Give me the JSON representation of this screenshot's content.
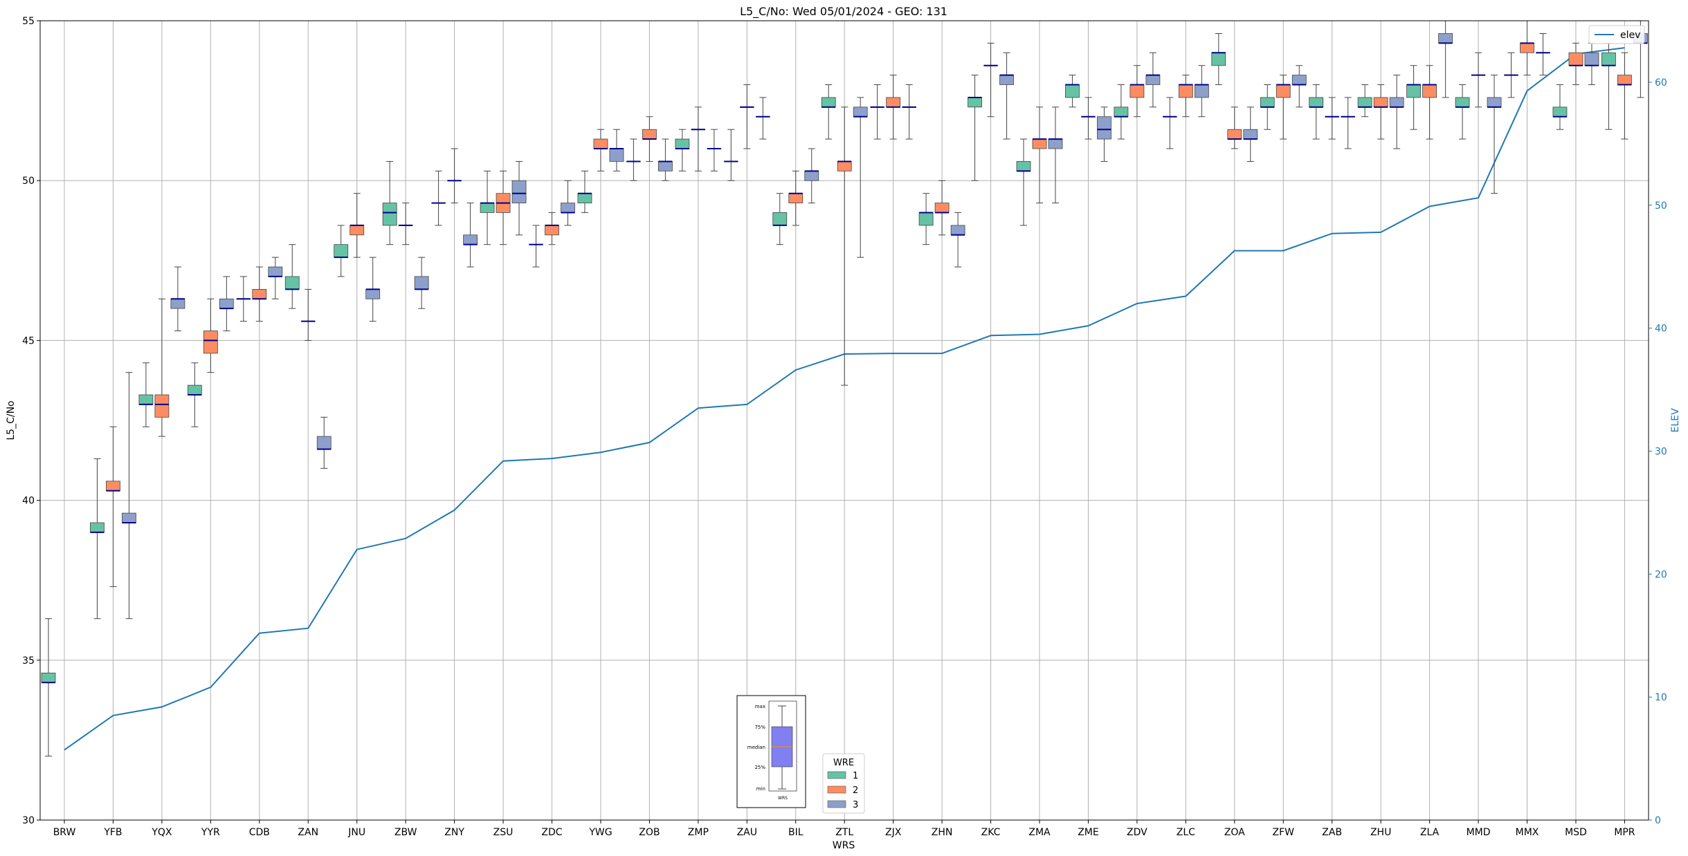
{
  "chart_data": {
    "type": "box",
    "title": "L5_C/No: Wed 05/01/2024 - GEO: 131",
    "xlabel": "WRS",
    "ylabel": "L5_C/No",
    "y2label": "ELEV",
    "ylim": [
      30,
      55
    ],
    "y2lim": [
      0,
      65
    ],
    "yticks": [
      30,
      35,
      40,
      45,
      50,
      55
    ],
    "y2ticks": [
      0,
      10,
      20,
      30,
      40,
      50,
      60
    ],
    "grid": true,
    "categories": [
      "BRW",
      "YFB",
      "YQX",
      "YYR",
      "CDB",
      "ZAN",
      "JNU",
      "ZBW",
      "ZNY",
      "ZSU",
      "ZDC",
      "YWG",
      "ZOB",
      "ZMP",
      "ZAU",
      "BIL",
      "ZTL",
      "ZJX",
      "ZHN",
      "ZKC",
      "ZMA",
      "ZME",
      "ZDV",
      "ZLC",
      "ZOA",
      "ZFW",
      "ZAB",
      "ZHU",
      "ZLA",
      "MMD",
      "MMX",
      "MSD",
      "MPR"
    ],
    "wre_legend": {
      "title": "WRE",
      "entries": [
        "1",
        "2",
        "3"
      ]
    },
    "colors": {
      "wre1": "#66c2a5",
      "wre2": "#fc8d62",
      "wre3": "#8da0cb",
      "median": "#00008b",
      "whisker": "#444444",
      "elev_line": "#1f77b4",
      "grid": "#b0b0b0"
    },
    "line_legend": "elev",
    "elev": [
      5.7,
      8.5,
      9.2,
      10.8,
      15.2,
      15.6,
      22.0,
      22.9,
      25.2,
      29.2,
      29.4,
      29.9,
      30.7,
      33.5,
      33.8,
      36.6,
      37.9,
      37.95,
      37.95,
      39.4,
      39.5,
      40.2,
      42.0,
      42.6,
      46.3,
      46.3,
      47.7,
      47.8,
      49.9,
      50.6,
      59.3,
      62.3,
      62.8
    ],
    "boxes": [
      [
        {
          "min": 32.0,
          "q1": 34.3,
          "med": 34.3,
          "q3": 34.6,
          "max": 36.3
        },
        null,
        null
      ],
      [
        {
          "min": 36.3,
          "q1": 39.0,
          "med": 39.0,
          "q3": 39.3,
          "max": 41.3
        },
        {
          "min": 37.3,
          "q1": 40.3,
          "med": 40.3,
          "q3": 40.6,
          "max": 42.3
        },
        {
          "min": 36.3,
          "q1": 39.3,
          "med": 39.3,
          "q3": 39.6,
          "max": 44.0
        }
      ],
      [
        {
          "min": 42.3,
          "q1": 43.0,
          "med": 43.0,
          "q3": 43.3,
          "max": 44.3
        },
        {
          "min": 42.0,
          "q1": 42.6,
          "med": 43.0,
          "q3": 43.3,
          "max": 46.3
        },
        {
          "min": 45.3,
          "q1": 46.0,
          "med": 46.3,
          "q3": 46.3,
          "max": 47.3
        }
      ],
      [
        {
          "min": 42.3,
          "q1": 43.3,
          "med": 43.3,
          "q3": 43.6,
          "max": 44.3
        },
        {
          "min": 44.0,
          "q1": 44.6,
          "med": 45.0,
          "q3": 45.3,
          "max": 46.3
        },
        {
          "min": 45.3,
          "q1": 46.0,
          "med": 46.0,
          "q3": 46.3,
          "max": 47.0
        }
      ],
      [
        {
          "min": 45.6,
          "q1": 46.3,
          "med": 46.3,
          "q3": 46.3,
          "max": 47.0
        },
        {
          "min": 45.6,
          "q1": 46.3,
          "med": 46.3,
          "q3": 46.6,
          "max": 47.3
        },
        {
          "min": 46.3,
          "q1": 47.0,
          "med": 47.0,
          "q3": 47.3,
          "max": 47.6
        }
      ],
      [
        {
          "min": 46.0,
          "q1": 46.6,
          "med": 46.6,
          "q3": 47.0,
          "max": 48.0
        },
        {
          "min": 45.0,
          "q1": 45.6,
          "med": 45.6,
          "q3": 45.6,
          "max": 46.6
        },
        {
          "min": 41.0,
          "q1": 41.6,
          "med": 41.6,
          "q3": 42.0,
          "max": 42.6
        }
      ],
      [
        {
          "min": 47.0,
          "q1": 47.6,
          "med": 47.6,
          "q3": 48.0,
          "max": 48.6
        },
        {
          "min": 47.6,
          "q1": 48.3,
          "med": 48.6,
          "q3": 48.6,
          "max": 49.6
        },
        {
          "min": 45.6,
          "q1": 46.3,
          "med": 46.6,
          "q3": 46.6,
          "max": 47.6
        }
      ],
      [
        {
          "min": 48.0,
          "q1": 48.6,
          "med": 49.0,
          "q3": 49.3,
          "max": 50.6
        },
        {
          "min": 48.0,
          "q1": 48.6,
          "med": 48.6,
          "q3": 48.6,
          "max": 49.3
        },
        {
          "min": 46.0,
          "q1": 46.6,
          "med": 46.6,
          "q3": 47.0,
          "max": 47.6
        }
      ],
      [
        {
          "min": 48.6,
          "q1": 49.3,
          "med": 49.3,
          "q3": 49.3,
          "max": 50.3
        },
        {
          "min": 49.3,
          "q1": 50.0,
          "med": 50.0,
          "q3": 50.0,
          "max": 51.0
        },
        {
          "min": 47.3,
          "q1": 48.0,
          "med": 48.0,
          "q3": 48.3,
          "max": 49.3
        }
      ],
      [
        {
          "min": 48.0,
          "q1": 49.0,
          "med": 49.3,
          "q3": 49.3,
          "max": 50.3
        },
        {
          "min": 48.0,
          "q1": 49.0,
          "med": 49.3,
          "q3": 49.6,
          "max": 50.3
        },
        {
          "min": 48.3,
          "q1": 49.3,
          "med": 49.6,
          "q3": 50.0,
          "max": 50.6
        }
      ],
      [
        {
          "min": 47.3,
          "q1": 48.0,
          "med": 48.0,
          "q3": 48.0,
          "max": 48.6
        },
        {
          "min": 48.0,
          "q1": 48.3,
          "med": 48.6,
          "q3": 48.6,
          "max": 49.0
        },
        {
          "min": 48.6,
          "q1": 49.0,
          "med": 49.0,
          "q3": 49.3,
          "max": 50.0
        }
      ],
      [
        {
          "min": 49.0,
          "q1": 49.3,
          "med": 49.6,
          "q3": 49.6,
          "max": 50.3
        },
        {
          "min": 50.3,
          "q1": 51.0,
          "med": 51.0,
          "q3": 51.3,
          "max": 51.6
        },
        {
          "min": 50.3,
          "q1": 50.6,
          "med": 51.0,
          "q3": 51.0,
          "max": 51.6
        }
      ],
      [
        {
          "min": 50.0,
          "q1": 50.6,
          "med": 50.6,
          "q3": 50.6,
          "max": 51.3
        },
        {
          "min": 50.6,
          "q1": 51.3,
          "med": 51.3,
          "q3": 51.6,
          "max": 52.0
        },
        {
          "min": 50.0,
          "q1": 50.3,
          "med": 50.6,
          "q3": 50.6,
          "max": 51.3
        }
      ],
      [
        {
          "min": 50.3,
          "q1": 51.0,
          "med": 51.0,
          "q3": 51.3,
          "max": 51.6
        },
        {
          "min": 50.3,
          "q1": 51.6,
          "med": 51.6,
          "q3": 51.6,
          "max": 52.3
        },
        {
          "min": 50.3,
          "q1": 51.0,
          "med": 51.0,
          "q3": 51.0,
          "max": 51.6
        }
      ],
      [
        {
          "min": 50.0,
          "q1": 50.6,
          "med": 50.6,
          "q3": 50.6,
          "max": 51.6
        },
        {
          "min": 51.0,
          "q1": 52.3,
          "med": 52.3,
          "q3": 52.3,
          "max": 53.0
        },
        {
          "min": 51.3,
          "q1": 52.0,
          "med": 52.0,
          "q3": 52.0,
          "max": 52.6
        }
      ],
      [
        {
          "min": 48.0,
          "q1": 48.6,
          "med": 48.6,
          "q3": 49.0,
          "max": 49.6
        },
        {
          "min": 48.6,
          "q1": 49.3,
          "med": 49.6,
          "q3": 49.6,
          "max": 50.3
        },
        {
          "min": 49.3,
          "q1": 50.0,
          "med": 50.3,
          "q3": 50.3,
          "max": 51.0
        }
      ],
      [
        {
          "min": 51.3,
          "q1": 52.3,
          "med": 52.3,
          "q3": 52.6,
          "max": 53.0
        },
        {
          "min": 43.6,
          "q1": 50.3,
          "med": 50.6,
          "q3": 50.6,
          "max": 52.3
        },
        {
          "min": 47.6,
          "q1": 52.0,
          "med": 52.0,
          "q3": 52.3,
          "max": 52.6
        }
      ],
      [
        {
          "min": 51.3,
          "q1": 52.3,
          "med": 52.3,
          "q3": 52.3,
          "max": 53.0
        },
        {
          "min": 51.3,
          "q1": 52.3,
          "med": 52.3,
          "q3": 52.6,
          "max": 53.3
        },
        {
          "min": 51.3,
          "q1": 52.3,
          "med": 52.3,
          "q3": 52.3,
          "max": 53.0
        }
      ],
      [
        {
          "min": 48.0,
          "q1": 48.6,
          "med": 49.0,
          "q3": 49.0,
          "max": 49.6
        },
        {
          "min": 48.3,
          "q1": 49.0,
          "med": 49.0,
          "q3": 49.3,
          "max": 50.0
        },
        {
          "min": 47.3,
          "q1": 48.3,
          "med": 48.3,
          "q3": 48.6,
          "max": 49.0
        }
      ],
      [
        {
          "min": 50.0,
          "q1": 52.3,
          "med": 52.6,
          "q3": 52.6,
          "max": 53.3
        },
        {
          "min": 52.0,
          "q1": 53.6,
          "med": 53.6,
          "q3": 53.6,
          "max": 54.3
        },
        {
          "min": 51.3,
          "q1": 53.0,
          "med": 53.3,
          "q3": 53.3,
          "max": 54.0
        }
      ],
      [
        {
          "min": 48.6,
          "q1": 50.3,
          "med": 50.3,
          "q3": 50.6,
          "max": 51.3
        },
        {
          "min": 49.3,
          "q1": 51.0,
          "med": 51.3,
          "q3": 51.3,
          "max": 52.3
        },
        {
          "min": 49.3,
          "q1": 51.0,
          "med": 51.3,
          "q3": 51.3,
          "max": 52.3
        }
      ],
      [
        {
          "min": 52.3,
          "q1": 52.6,
          "med": 53.0,
          "q3": 53.0,
          "max": 53.3
        },
        {
          "min": 51.3,
          "q1": 52.0,
          "med": 52.0,
          "q3": 52.0,
          "max": 52.6
        },
        {
          "min": 50.6,
          "q1": 51.3,
          "med": 51.6,
          "q3": 52.0,
          "max": 52.3
        }
      ],
      [
        {
          "min": 51.3,
          "q1": 52.0,
          "med": 52.0,
          "q3": 52.3,
          "max": 53.0
        },
        {
          "min": 52.0,
          "q1": 52.6,
          "med": 53.0,
          "q3": 53.0,
          "max": 53.6
        },
        {
          "min": 52.3,
          "q1": 53.0,
          "med": 53.3,
          "q3": 53.3,
          "max": 54.0
        }
      ],
      [
        {
          "min": 51.0,
          "q1": 52.0,
          "med": 52.0,
          "q3": 52.0,
          "max": 52.6
        },
        {
          "min": 52.0,
          "q1": 52.6,
          "med": 53.0,
          "q3": 53.0,
          "max": 53.3
        },
        {
          "min": 52.0,
          "q1": 52.6,
          "med": 53.0,
          "q3": 53.0,
          "max": 53.6
        }
      ],
      [
        {
          "min": 53.0,
          "q1": 53.6,
          "med": 54.0,
          "q3": 54.0,
          "max": 54.6
        },
        {
          "min": 51.0,
          "q1": 51.3,
          "med": 51.3,
          "q3": 51.6,
          "max": 52.3
        },
        {
          "min": 50.6,
          "q1": 51.3,
          "med": 51.3,
          "q3": 51.6,
          "max": 52.3
        }
      ],
      [
        {
          "min": 51.6,
          "q1": 52.3,
          "med": 52.3,
          "q3": 52.6,
          "max": 53.0
        },
        {
          "min": 51.3,
          "q1": 52.6,
          "med": 53.0,
          "q3": 53.0,
          "max": 53.3
        },
        {
          "min": 52.3,
          "q1": 53.0,
          "med": 53.0,
          "q3": 53.3,
          "max": 53.6
        }
      ],
      [
        {
          "min": 51.3,
          "q1": 52.3,
          "med": 52.3,
          "q3": 52.6,
          "max": 53.0
        },
        {
          "min": 51.3,
          "q1": 52.0,
          "med": 52.0,
          "q3": 52.0,
          "max": 52.6
        },
        {
          "min": 51.0,
          "q1": 52.0,
          "med": 52.0,
          "q3": 52.0,
          "max": 52.6
        }
      ],
      [
        {
          "min": 52.0,
          "q1": 52.3,
          "med": 52.3,
          "q3": 52.6,
          "max": 53.0
        },
        {
          "min": 51.3,
          "q1": 52.3,
          "med": 52.3,
          "q3": 52.6,
          "max": 53.0
        },
        {
          "min": 51.0,
          "q1": 52.3,
          "med": 52.3,
          "q3": 52.6,
          "max": 53.3
        }
      ],
      [
        {
          "min": 51.6,
          "q1": 52.6,
          "med": 53.0,
          "q3": 53.0,
          "max": 53.6
        },
        {
          "min": 51.3,
          "q1": 52.6,
          "med": 53.0,
          "q3": 53.0,
          "max": 53.6
        },
        {
          "min": 52.6,
          "q1": 54.3,
          "med": 54.3,
          "q3": 54.6,
          "max": 55.0
        }
      ],
      [
        {
          "min": 51.3,
          "q1": 52.3,
          "med": 52.3,
          "q3": 52.6,
          "max": 53.0
        },
        {
          "min": 52.3,
          "q1": 53.3,
          "med": 53.3,
          "q3": 53.3,
          "max": 54.0
        },
        {
          "min": 49.6,
          "q1": 52.3,
          "med": 52.3,
          "q3": 52.6,
          "max": 53.3
        }
      ],
      [
        {
          "min": 52.6,
          "q1": 53.3,
          "med": 53.3,
          "q3": 53.3,
          "max": 54.0
        },
        {
          "min": 53.3,
          "q1": 54.0,
          "med": 54.3,
          "q3": 54.3,
          "max": 55.0
        },
        {
          "min": 53.3,
          "q1": 54.0,
          "med": 54.0,
          "q3": 54.0,
          "max": 54.6
        }
      ],
      [
        {
          "min": 51.6,
          "q1": 52.0,
          "med": 52.0,
          "q3": 52.3,
          "max": 53.0
        },
        {
          "min": 53.0,
          "q1": 53.6,
          "med": 53.6,
          "q3": 54.0,
          "max": 54.3
        },
        {
          "min": 53.0,
          "q1": 53.6,
          "med": 53.6,
          "q3": 54.0,
          "max": 54.3
        }
      ],
      [
        {
          "min": 51.6,
          "q1": 53.6,
          "med": 53.6,
          "q3": 54.0,
          "max": 54.3
        },
        {
          "min": 51.3,
          "q1": 53.0,
          "med": 53.0,
          "q3": 53.3,
          "max": 54.0
        },
        {
          "min": 52.6,
          "q1": 54.3,
          "med": 54.3,
          "q3": 54.6,
          "max": 55.0
        }
      ]
    ],
    "inset": {
      "labels": [
        "max",
        "75%",
        "median",
        "25%",
        "min"
      ],
      "xlabel": "WRS"
    }
  }
}
